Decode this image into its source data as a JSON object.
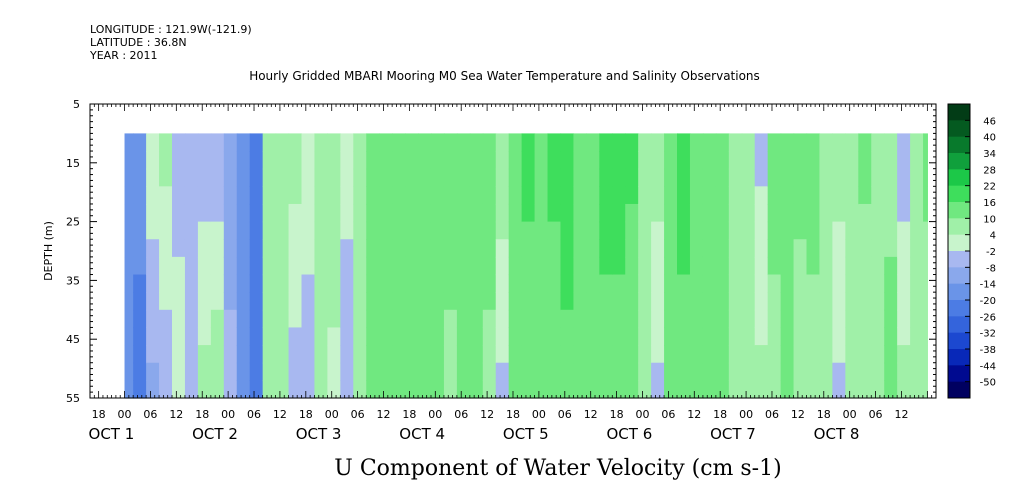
{
  "header": {
    "longitude": "LONGITUDE : 121.9W(-121.9)",
    "latitude": "LATITUDE : 36.8N",
    "year": "YEAR : 2011",
    "title": "Hourly Gridded MBARI Mooring M0 Sea Water Temperature and Salinity Observations"
  },
  "chart_data": {
    "type": "heatmap",
    "title": "Hourly Gridded MBARI Mooring M0 Sea Water Temperature and Salinity Observations",
    "xlabel": "U Component of Water Velocity (cm s-1)",
    "ylabel": "DEPTH (m)",
    "x_hours_range": [
      -8,
      188
    ],
    "y_range_m": [
      5,
      55
    ],
    "y_inverted": true,
    "y_ticks": [
      5,
      15,
      25,
      35,
      45,
      55
    ],
    "x_hour_tick_labels": [
      "18",
      "00",
      "06",
      "12",
      "18",
      "00",
      "06",
      "12",
      "18",
      "00",
      "06",
      "12",
      "18",
      "00",
      "06",
      "12",
      "18",
      "00",
      "06",
      "12",
      "18",
      "00",
      "06",
      "12",
      "18",
      "00",
      "06",
      "12",
      "18",
      "00",
      "06",
      "12"
    ],
    "x_day_labels": [
      {
        "label": "OCT  1",
        "hour": 0
      },
      {
        "label": "OCT  2",
        "hour": 24
      },
      {
        "label": "OCT  3",
        "hour": 48
      },
      {
        "label": "OCT  4",
        "hour": 72
      },
      {
        "label": "OCT  5",
        "hour": 96
      },
      {
        "label": "OCT  6",
        "hour": 120
      },
      {
        "label": "OCT  7",
        "hour": 144
      },
      {
        "label": "OCT  8",
        "hour": 168
      }
    ],
    "data_extent": {
      "hour_start": 0,
      "hour_end": 186,
      "depth_top": 10,
      "depth_bottom": 55
    },
    "colorbar": {
      "levels": [
        -50,
        -44,
        -38,
        -32,
        -26,
        -20,
        -14,
        -8,
        -2,
        4,
        10,
        16,
        22,
        28,
        34,
        40,
        46
      ],
      "colors": [
        "#000060",
        "#000a90",
        "#0828b8",
        "#1c48d0",
        "#3464dc",
        "#4c7ce4",
        "#6a94e8",
        "#8aa8ec",
        "#a8b8f0",
        "#c8f4cc",
        "#a0f0a8",
        "#70e880",
        "#3ede5c",
        "#1cc848",
        "#10a03c",
        "#087a2c",
        "#045a20",
        "#023c16"
      ],
      "tick_labels": [
        "46",
        "40",
        "34",
        "28",
        "22",
        "16",
        "10",
        "4",
        "-2",
        "-8",
        "-14",
        "-20",
        "-26",
        "-32",
        "-38",
        "-44",
        "-50"
      ]
    },
    "column_profiles": [
      {
        "hour": 0,
        "top": -14,
        "bottom": -20
      },
      {
        "hour": 2,
        "top": -14,
        "bottom": -26
      },
      {
        "hour": 5,
        "top": 4,
        "bottom": -10
      },
      {
        "hour": 8,
        "top": 6,
        "bottom": -6
      },
      {
        "hour": 11,
        "top": -6,
        "bottom": 2
      },
      {
        "hour": 14,
        "top": -8,
        "bottom": -4
      },
      {
        "hour": 17,
        "top": -6,
        "bottom": 6
      },
      {
        "hour": 20,
        "top": -8,
        "bottom": 10
      },
      {
        "hour": 23,
        "top": -12,
        "bottom": -6
      },
      {
        "hour": 26,
        "top": -18,
        "bottom": -16
      },
      {
        "hour": 29,
        "top": -22,
        "bottom": -20
      },
      {
        "hour": 32,
        "top": 6,
        "bottom": 10
      },
      {
        "hour": 35,
        "top": 4,
        "bottom": 6
      },
      {
        "hour": 38,
        "top": 8,
        "bottom": -6
      },
      {
        "hour": 41,
        "top": 4,
        "bottom": -8
      },
      {
        "hour": 44,
        "top": 6,
        "bottom": 4
      },
      {
        "hour": 47,
        "top": 10,
        "bottom": 2
      },
      {
        "hour": 50,
        "top": 2,
        "bottom": -8
      },
      {
        "hour": 53,
        "top": 4,
        "bottom": 6
      },
      {
        "hour": 56,
        "top": 10,
        "bottom": 12
      },
      {
        "hour": 59,
        "top": 14,
        "bottom": 10
      },
      {
        "hour": 62,
        "top": 10,
        "bottom": 12
      },
      {
        "hour": 65,
        "top": 12,
        "bottom": 10
      },
      {
        "hour": 68,
        "top": 14,
        "bottom": 10
      },
      {
        "hour": 71,
        "top": 10,
        "bottom": 12
      },
      {
        "hour": 74,
        "top": 14,
        "bottom": 8
      },
      {
        "hour": 77,
        "top": 12,
        "bottom": 10
      },
      {
        "hour": 80,
        "top": 16,
        "bottom": 12
      },
      {
        "hour": 83,
        "top": 14,
        "bottom": 8
      },
      {
        "hour": 86,
        "top": 10,
        "bottom": -4
      },
      {
        "hour": 89,
        "top": 14,
        "bottom": 10
      },
      {
        "hour": 92,
        "top": 18,
        "bottom": 12
      },
      {
        "hour": 95,
        "top": 16,
        "bottom": 14
      },
      {
        "hour": 98,
        "top": 18,
        "bottom": 12
      },
      {
        "hour": 101,
        "top": 20,
        "bottom": 14
      },
      {
        "hour": 104,
        "top": 16,
        "bottom": 10
      },
      {
        "hour": 107,
        "top": 14,
        "bottom": 12
      },
      {
        "hour": 110,
        "top": 18,
        "bottom": 14
      },
      {
        "hour": 113,
        "top": 20,
        "bottom": 12
      },
      {
        "hour": 116,
        "top": 18,
        "bottom": 10
      },
      {
        "hour": 119,
        "top": 10,
        "bottom": 4
      },
      {
        "hour": 122,
        "top": 8,
        "bottom": -4
      },
      {
        "hour": 125,
        "top": 16,
        "bottom": 12
      },
      {
        "hour": 128,
        "top": 18,
        "bottom": 14
      },
      {
        "hour": 131,
        "top": 12,
        "bottom": 10
      },
      {
        "hour": 134,
        "top": 14,
        "bottom": 12
      },
      {
        "hour": 137,
        "top": 16,
        "bottom": 10
      },
      {
        "hour": 140,
        "top": 10,
        "bottom": 8
      },
      {
        "hour": 143,
        "top": 8,
        "bottom": 4
      },
      {
        "hour": 146,
        "top": -4,
        "bottom": 6
      },
      {
        "hour": 149,
        "top": 12,
        "bottom": 8
      },
      {
        "hour": 152,
        "top": 16,
        "bottom": 10
      },
      {
        "hour": 155,
        "top": 14,
        "bottom": 4
      },
      {
        "hour": 158,
        "top": 12,
        "bottom": 8
      },
      {
        "hour": 161,
        "top": 10,
        "bottom": 6
      },
      {
        "hour": 164,
        "top": 8,
        "bottom": -4
      },
      {
        "hour": 167,
        "top": 10,
        "bottom": 6
      },
      {
        "hour": 170,
        "top": 12,
        "bottom": 4
      },
      {
        "hour": 173,
        "top": 4,
        "bottom": 10
      },
      {
        "hour": 176,
        "top": 8,
        "bottom": 12
      },
      {
        "hour": 179,
        "top": -6,
        "bottom": 6
      },
      {
        "hour": 182,
        "top": 10,
        "bottom": 8
      },
      {
        "hour": 185,
        "top": 12,
        "bottom": 6
      }
    ]
  }
}
